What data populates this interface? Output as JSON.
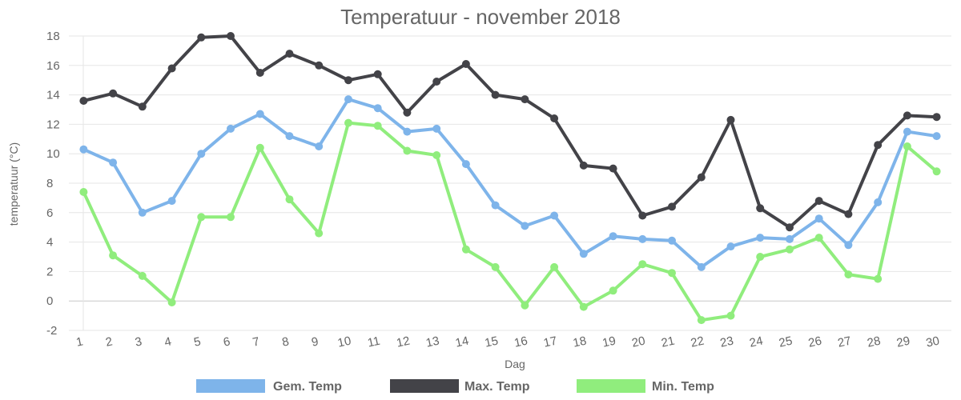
{
  "chart_data": {
    "type": "line",
    "title": "Temperatuur - november 2018",
    "xlabel": "Dag",
    "ylabel": "temperatuur (°C)",
    "categories": [
      "1",
      "2",
      "3",
      "4",
      "5",
      "6",
      "7",
      "8",
      "9",
      "10",
      "11",
      "12",
      "13",
      "14",
      "15",
      "16",
      "17",
      "18",
      "19",
      "20",
      "21",
      "22",
      "23",
      "24",
      "25",
      "26",
      "27",
      "28",
      "29",
      "30"
    ],
    "ylim": [
      -2,
      18
    ],
    "yticks": [
      "-2",
      "0",
      "2",
      "4",
      "6",
      "8",
      "10",
      "12",
      "14",
      "16",
      "18"
    ],
    "grid": true,
    "legend_position": "bottom",
    "series": [
      {
        "name": "Gem. Temp",
        "color": "#7eb4ea",
        "values": [
          10.3,
          9.4,
          6.0,
          6.8,
          10.0,
          11.7,
          12.7,
          11.2,
          10.5,
          13.7,
          13.1,
          11.5,
          11.7,
          9.3,
          6.5,
          5.1,
          5.8,
          3.2,
          4.4,
          4.2,
          4.1,
          2.3,
          3.7,
          4.3,
          4.2,
          5.6,
          3.8,
          6.7,
          11.5,
          11.2
        ]
      },
      {
        "name": "Max. Temp",
        "color": "#434348",
        "values": [
          13.6,
          14.1,
          13.2,
          15.8,
          17.9,
          18.0,
          15.5,
          16.8,
          16.0,
          15.0,
          15.4,
          12.8,
          14.9,
          16.1,
          14.0,
          13.7,
          12.4,
          9.2,
          9.0,
          5.8,
          6.4,
          8.4,
          12.3,
          6.3,
          5.0,
          6.8,
          5.9,
          10.6,
          12.6,
          12.5
        ]
      },
      {
        "name": "Min. Temp",
        "color": "#90ed7d",
        "values": [
          7.4,
          3.1,
          1.7,
          -0.1,
          5.7,
          5.7,
          10.4,
          6.9,
          4.6,
          12.1,
          11.9,
          10.2,
          9.9,
          3.5,
          2.3,
          -0.3,
          2.3,
          -0.4,
          0.7,
          2.5,
          1.9,
          -1.3,
          -1.0,
          3.0,
          3.5,
          4.3,
          1.8,
          1.5,
          10.5,
          8.8
        ]
      }
    ]
  }
}
